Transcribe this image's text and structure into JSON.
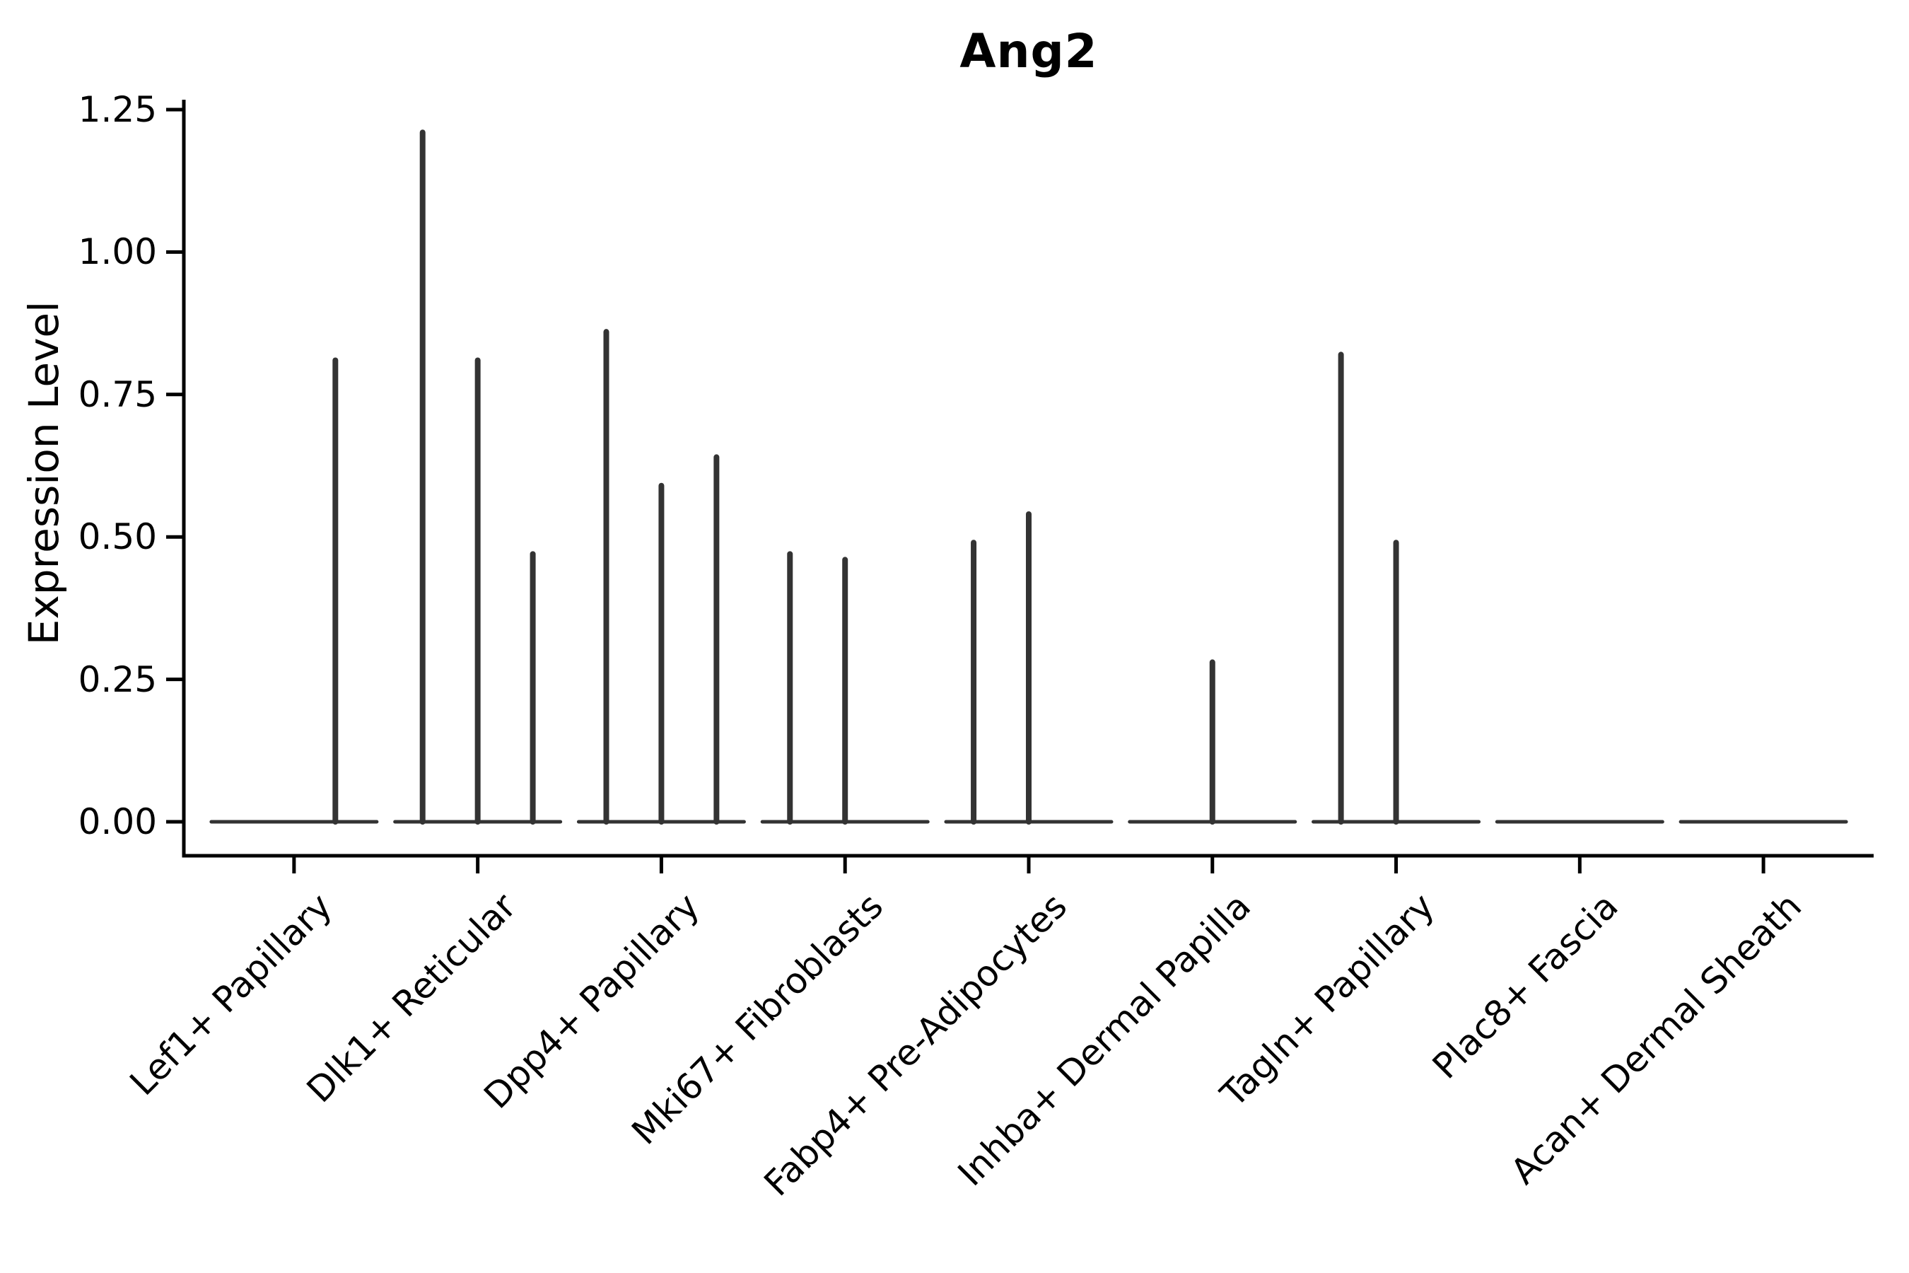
{
  "figure": {
    "title": "Ang2",
    "background_color": "#ffffff"
  },
  "chart_data": {
    "type": "violin",
    "title": "Ang2",
    "xlabel": "",
    "ylabel": "Expression Level",
    "ylim": [
      0,
      1.25
    ],
    "yticks": [
      "0.00",
      "0.25",
      "0.50",
      "0.75",
      "1.00",
      "1.25"
    ],
    "grid": "off",
    "legend": "none",
    "x_tick_rotation_deg": 45,
    "violin_color": "#333333",
    "axis_color": "#000000",
    "description": "Collapsed violins: nearly all density at 0 (flat baseline per cluster) with thin spikes rising to each sub-violin's maximum expression value.",
    "categories": [
      "Lef1+ Papillary",
      "Dlk1+ Reticular",
      "Dpp4+ Papillary",
      "Mki67+ Fibroblasts",
      "Fabp4+ Pre-Adipocytes",
      "Inhba+ Dermal Papilla",
      "Tagln+ Papillary",
      "Plac8+ Fascia",
      "Acan+ Dermal Sheath"
    ],
    "series": [
      {
        "category": "Lef1+ Papillary",
        "baseline_value": 0,
        "spikes": [
          {
            "offset": 0.225,
            "max": 0.81
          }
        ]
      },
      {
        "category": "Dlk1+ Reticular",
        "baseline_value": 0,
        "spikes": [
          {
            "offset": -0.3,
            "max": 1.21
          },
          {
            "offset": 0,
            "max": 0.81
          },
          {
            "offset": 0.3,
            "max": 0.47
          }
        ]
      },
      {
        "category": "Dpp4+ Papillary",
        "baseline_value": 0,
        "spikes": [
          {
            "offset": -0.3,
            "max": 0.86
          },
          {
            "offset": 0,
            "max": 0.59
          },
          {
            "offset": 0.3,
            "max": 0.64
          }
        ]
      },
      {
        "category": "Mki67+ Fibroblasts",
        "baseline_value": 0,
        "spikes": [
          {
            "offset": -0.3,
            "max": 0.47
          },
          {
            "offset": 0,
            "max": 0.46
          }
        ]
      },
      {
        "category": "Fabp4+ Pre-Adipocytes",
        "baseline_value": 0,
        "spikes": [
          {
            "offset": -0.3,
            "max": 0.49
          },
          {
            "offset": 0,
            "max": 0.54
          }
        ]
      },
      {
        "category": "Inhba+ Dermal Papilla",
        "baseline_value": 0,
        "spikes": [
          {
            "offset": 0,
            "max": 0.28
          }
        ]
      },
      {
        "category": "Tagln+ Papillary",
        "baseline_value": 0,
        "spikes": [
          {
            "offset": -0.3,
            "max": 0.82
          },
          {
            "offset": 0,
            "max": 0.49
          }
        ]
      },
      {
        "category": "Plac8+ Fascia",
        "baseline_value": 0,
        "spikes": []
      },
      {
        "category": "Acan+ Dermal Sheath",
        "baseline_value": 0,
        "spikes": []
      }
    ]
  }
}
